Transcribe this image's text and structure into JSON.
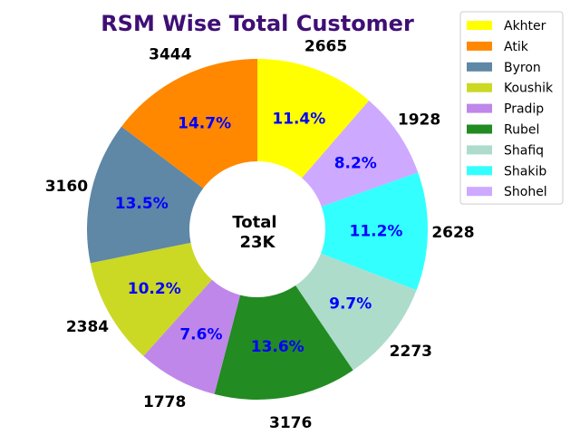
{
  "colors": {
    "title": "#3f0f75",
    "percent_text": "#0000ff",
    "legend_border": "#cccccc"
  },
  "chart_data": {
    "type": "pie",
    "donut": true,
    "title": "RSM Wise Total Customer",
    "center_label": [
      "Total",
      "23K"
    ],
    "start_angle_deg": 90,
    "direction": "clockwise",
    "legend_position": "top-right",
    "slices": [
      {
        "name": "Akhter",
        "value": 2665,
        "percent": "11.4%",
        "color": "#ffff00"
      },
      {
        "name": "Shohel",
        "value": 1928,
        "percent": "8.2%",
        "color": "#cda9ff"
      },
      {
        "name": "Shakib",
        "value": 2628,
        "percent": "11.2%",
        "color": "#33ffff"
      },
      {
        "name": "Shafiq",
        "value": 2273,
        "percent": "9.7%",
        "color": "#addccb"
      },
      {
        "name": "Rubel",
        "value": 3176,
        "percent": "13.6%",
        "color": "#228b22"
      },
      {
        "name": "Pradip",
        "value": 1778,
        "percent": "7.6%",
        "color": "#bf87e9"
      },
      {
        "name": "Koushik",
        "value": 2384,
        "percent": "10.2%",
        "color": "#cbd924"
      },
      {
        "name": "Byron",
        "value": 3160,
        "percent": "13.5%",
        "color": "#5f87a6"
      },
      {
        "name": "Atik",
        "value": 3444,
        "percent": "14.7%",
        "color": "#ff8800"
      }
    ],
    "legend_order": [
      "Akhter",
      "Atik",
      "Byron",
      "Koushik",
      "Pradip",
      "Rubel",
      "Shafiq",
      "Shakib",
      "Shohel"
    ]
  }
}
